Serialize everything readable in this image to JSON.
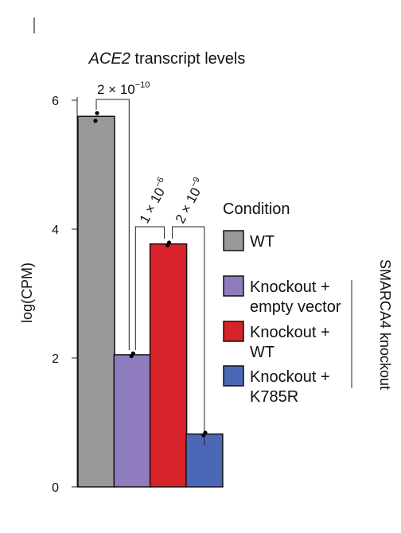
{
  "chart_data": {
    "type": "bar",
    "title_italic": "ACE2",
    "title_rest": " transcript levels",
    "ylabel": "log(CPM)",
    "ylim": [
      0,
      6
    ],
    "yticks": [
      0,
      2,
      4,
      6
    ],
    "categories": [
      "WT",
      "Knockout + empty vector",
      "Knockout + WT",
      "Knockout + K785R"
    ],
    "values": [
      5.75,
      2.05,
      3.77,
      0.82
    ],
    "points": [
      [
        5.68,
        5.8
      ],
      [
        2.03,
        2.07
      ],
      [
        3.75,
        3.79
      ],
      [
        0.8,
        0.84
      ]
    ],
    "colors": [
      "#999999",
      "#8e7cbf",
      "#d8222a",
      "#4a68b6"
    ],
    "comparisons": [
      {
        "from": 0,
        "to": 1,
        "label_base": "2 × 10",
        "label_exp": "−10"
      },
      {
        "from": 1,
        "to": 2,
        "label_base": "1 × 10",
        "label_exp": "−6"
      },
      {
        "from": 2,
        "to": 3,
        "label_base": "2 × 10",
        "label_exp": "−9"
      }
    ],
    "legend": {
      "title": "Condition",
      "placement": "right",
      "entries": [
        {
          "lines": [
            "WT"
          ],
          "color": "#999999"
        },
        {
          "lines": [
            "Knockout +",
            "empty vector"
          ],
          "color": "#8e7cbf"
        },
        {
          "lines": [
            "Knockout +",
            "WT"
          ],
          "color": "#d8222a"
        },
        {
          "lines": [
            "Knockout +",
            "K785R"
          ],
          "color": "#4a68b6"
        }
      ],
      "group_label": "SMARCA4 knockout"
    }
  }
}
